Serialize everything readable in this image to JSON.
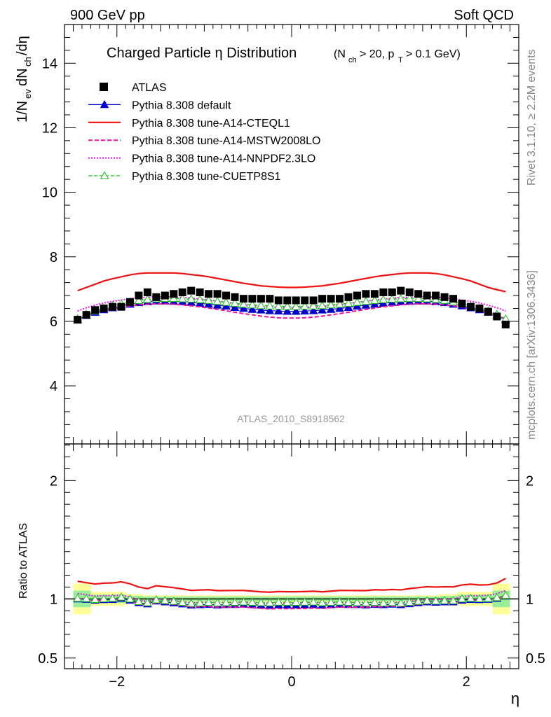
{
  "header": {
    "left": "900 GeV pp",
    "right": "Soft QCD"
  },
  "side_labels": {
    "rivet": "Rivet 3.1.10, ≥ 2.2M events",
    "mcplots": "mcplots.cern.ch [arXiv:1306.3436]"
  },
  "colors": {
    "atlas": "#000000",
    "default": "#0000cc",
    "cteql1": "#ee1111",
    "mstw": "#ee1199",
    "nnpdf": "#ee11ee",
    "cuetp8s1": "#22bb22",
    "band_yellow": "#ffff99",
    "band_green": "#99ee99"
  },
  "chart_data": [
    {
      "type": "line",
      "title": "Charged Particle η Distribution",
      "title_suffix": "(N_ch > 20, p_T > 0.1 GeV)",
      "ylabel": "1/N_ev dN_ch/dη",
      "xlabel": "η",
      "xlim": [
        -2.6,
        2.6
      ],
      "ylim": [
        2.2,
        15.2
      ],
      "yticks": [
        4,
        6,
        8,
        10,
        12,
        14
      ],
      "xticks": [
        -2,
        0,
        2
      ],
      "watermark": "ATLAS_2010_S8918562",
      "x": [
        -2.45,
        -2.35,
        -2.25,
        -2.15,
        -2.05,
        -1.95,
        -1.85,
        -1.75,
        -1.65,
        -1.55,
        -1.45,
        -1.35,
        -1.25,
        -1.15,
        -1.05,
        -0.95,
        -0.85,
        -0.75,
        -0.65,
        -0.55,
        -0.45,
        -0.35,
        -0.25,
        -0.15,
        -0.05,
        0.05,
        0.15,
        0.25,
        0.35,
        0.45,
        0.55,
        0.65,
        0.75,
        0.85,
        0.95,
        1.05,
        1.15,
        1.25,
        1.35,
        1.45,
        1.55,
        1.65,
        1.75,
        1.85,
        1.95,
        2.05,
        2.15,
        2.25,
        2.35,
        2.45
      ],
      "series": [
        {
          "name": "ATLAS",
          "key": "atlas",
          "style": "square",
          "values": [
            6.05,
            6.2,
            6.35,
            6.4,
            6.45,
            6.45,
            6.6,
            6.8,
            6.9,
            6.75,
            6.8,
            6.85,
            6.9,
            6.95,
            6.9,
            6.85,
            6.85,
            6.8,
            6.75,
            6.7,
            6.7,
            6.7,
            6.7,
            6.65,
            6.65,
            6.65,
            6.65,
            6.65,
            6.7,
            6.7,
            6.7,
            6.75,
            6.8,
            6.85,
            6.85,
            6.9,
            6.9,
            6.95,
            6.9,
            6.85,
            6.8,
            6.8,
            6.75,
            6.7,
            6.55,
            6.45,
            6.4,
            6.3,
            6.15,
            5.9
          ]
        },
        {
          "name": "Pythia 8.308 default",
          "key": "default",
          "style": "triangle",
          "values": [
            6.05,
            6.18,
            6.28,
            6.36,
            6.42,
            6.48,
            6.53,
            6.58,
            6.61,
            6.63,
            6.63,
            6.62,
            6.61,
            6.59,
            6.56,
            6.53,
            6.5,
            6.47,
            6.43,
            6.4,
            6.37,
            6.35,
            6.33,
            6.32,
            6.31,
            6.31,
            6.32,
            6.33,
            6.35,
            6.37,
            6.4,
            6.43,
            6.47,
            6.5,
            6.53,
            6.56,
            6.59,
            6.61,
            6.62,
            6.63,
            6.63,
            6.61,
            6.58,
            6.53,
            6.48,
            6.42,
            6.36,
            6.28,
            6.18,
            6.05
          ]
        },
        {
          "name": "Pythia 8.308 tune-A14-CTEQL1",
          "key": "cteql1",
          "style": "solid",
          "values": [
            6.95,
            7.05,
            7.15,
            7.25,
            7.32,
            7.38,
            7.44,
            7.48,
            7.5,
            7.5,
            7.5,
            7.5,
            7.48,
            7.45,
            7.42,
            7.38,
            7.33,
            7.28,
            7.23,
            7.18,
            7.14,
            7.1,
            7.08,
            7.06,
            7.05,
            7.05,
            7.06,
            7.08,
            7.1,
            7.14,
            7.18,
            7.23,
            7.28,
            7.33,
            7.38,
            7.42,
            7.45,
            7.48,
            7.5,
            7.5,
            7.5,
            7.48,
            7.44,
            7.38,
            7.32,
            7.25,
            7.15,
            7.05,
            6.98,
            6.92
          ]
        },
        {
          "name": "Pythia 8.308 tune-A14-MSTW2008LO",
          "key": "mstw",
          "style": "dashed",
          "values": [
            6.08,
            6.18,
            6.26,
            6.33,
            6.39,
            6.44,
            6.48,
            6.51,
            6.53,
            6.54,
            6.54,
            6.53,
            6.51,
            6.48,
            6.45,
            6.41,
            6.37,
            6.33,
            6.28,
            6.24,
            6.2,
            6.16,
            6.13,
            6.11,
            6.1,
            6.1,
            6.11,
            6.13,
            6.16,
            6.2,
            6.24,
            6.28,
            6.33,
            6.37,
            6.41,
            6.45,
            6.48,
            6.51,
            6.53,
            6.54,
            6.54,
            6.53,
            6.51,
            6.48,
            6.44,
            6.39,
            6.33,
            6.26,
            6.18,
            6.08
          ]
        },
        {
          "name": "Pythia 8.308 tune-A14-NNPDF2.3LO",
          "key": "nnpdf",
          "style": "dotted",
          "values": [
            6.32,
            6.42,
            6.5,
            6.57,
            6.62,
            6.66,
            6.7,
            6.73,
            6.75,
            6.76,
            6.76,
            6.75,
            6.74,
            6.72,
            6.69,
            6.66,
            6.63,
            6.59,
            6.55,
            6.52,
            6.49,
            6.46,
            6.44,
            6.43,
            6.42,
            6.42,
            6.43,
            6.44,
            6.46,
            6.49,
            6.52,
            6.55,
            6.59,
            6.63,
            6.66,
            6.69,
            6.72,
            6.74,
            6.75,
            6.76,
            6.76,
            6.75,
            6.73,
            6.7,
            6.66,
            6.62,
            6.57,
            6.5,
            6.42,
            6.32
          ]
        },
        {
          "name": "Pythia 8.308 tune-CUETP8S1",
          "key": "cuetp8s1",
          "style": "dashed-triangle",
          "values": [
            6.08,
            6.22,
            6.32,
            6.41,
            6.48,
            6.55,
            6.6,
            6.65,
            6.68,
            6.7,
            6.71,
            6.71,
            6.7,
            6.69,
            6.67,
            6.65,
            6.62,
            6.59,
            6.56,
            6.53,
            6.51,
            6.49,
            6.48,
            6.47,
            6.46,
            6.46,
            6.47,
            6.48,
            6.49,
            6.51,
            6.53,
            6.56,
            6.59,
            6.62,
            6.65,
            6.67,
            6.69,
            6.7,
            6.71,
            6.71,
            6.7,
            6.68,
            6.65,
            6.6,
            6.55,
            6.48,
            6.41,
            6.32,
            6.22,
            6.08
          ]
        }
      ]
    },
    {
      "type": "line",
      "title": "",
      "ylabel": "Ratio to ATLAS",
      "xlabel": "η",
      "xlim": [
        -2.6,
        2.6
      ],
      "ylim": [
        0.41,
        2.31
      ],
      "yticks": [
        0.5,
        1,
        2
      ],
      "ytick_labels": [
        "0.5",
        "1",
        "2"
      ],
      "xticks": [
        -2,
        0,
        2
      ],
      "xtick_labels": [
        "−2",
        "0",
        "2"
      ],
      "bands": {
        "x_edges": [
          -2.5,
          -2.3,
          -1.9,
          -1.7,
          1.7,
          1.9,
          2.3,
          2.5
        ],
        "yellow_half": [
          0.13,
          0.06,
          0.04,
          0.03,
          0.04,
          0.06,
          0.13
        ],
        "green_half": [
          0.07,
          0.035,
          0.025,
          0.02,
          0.025,
          0.035,
          0.07
        ]
      }
    }
  ]
}
